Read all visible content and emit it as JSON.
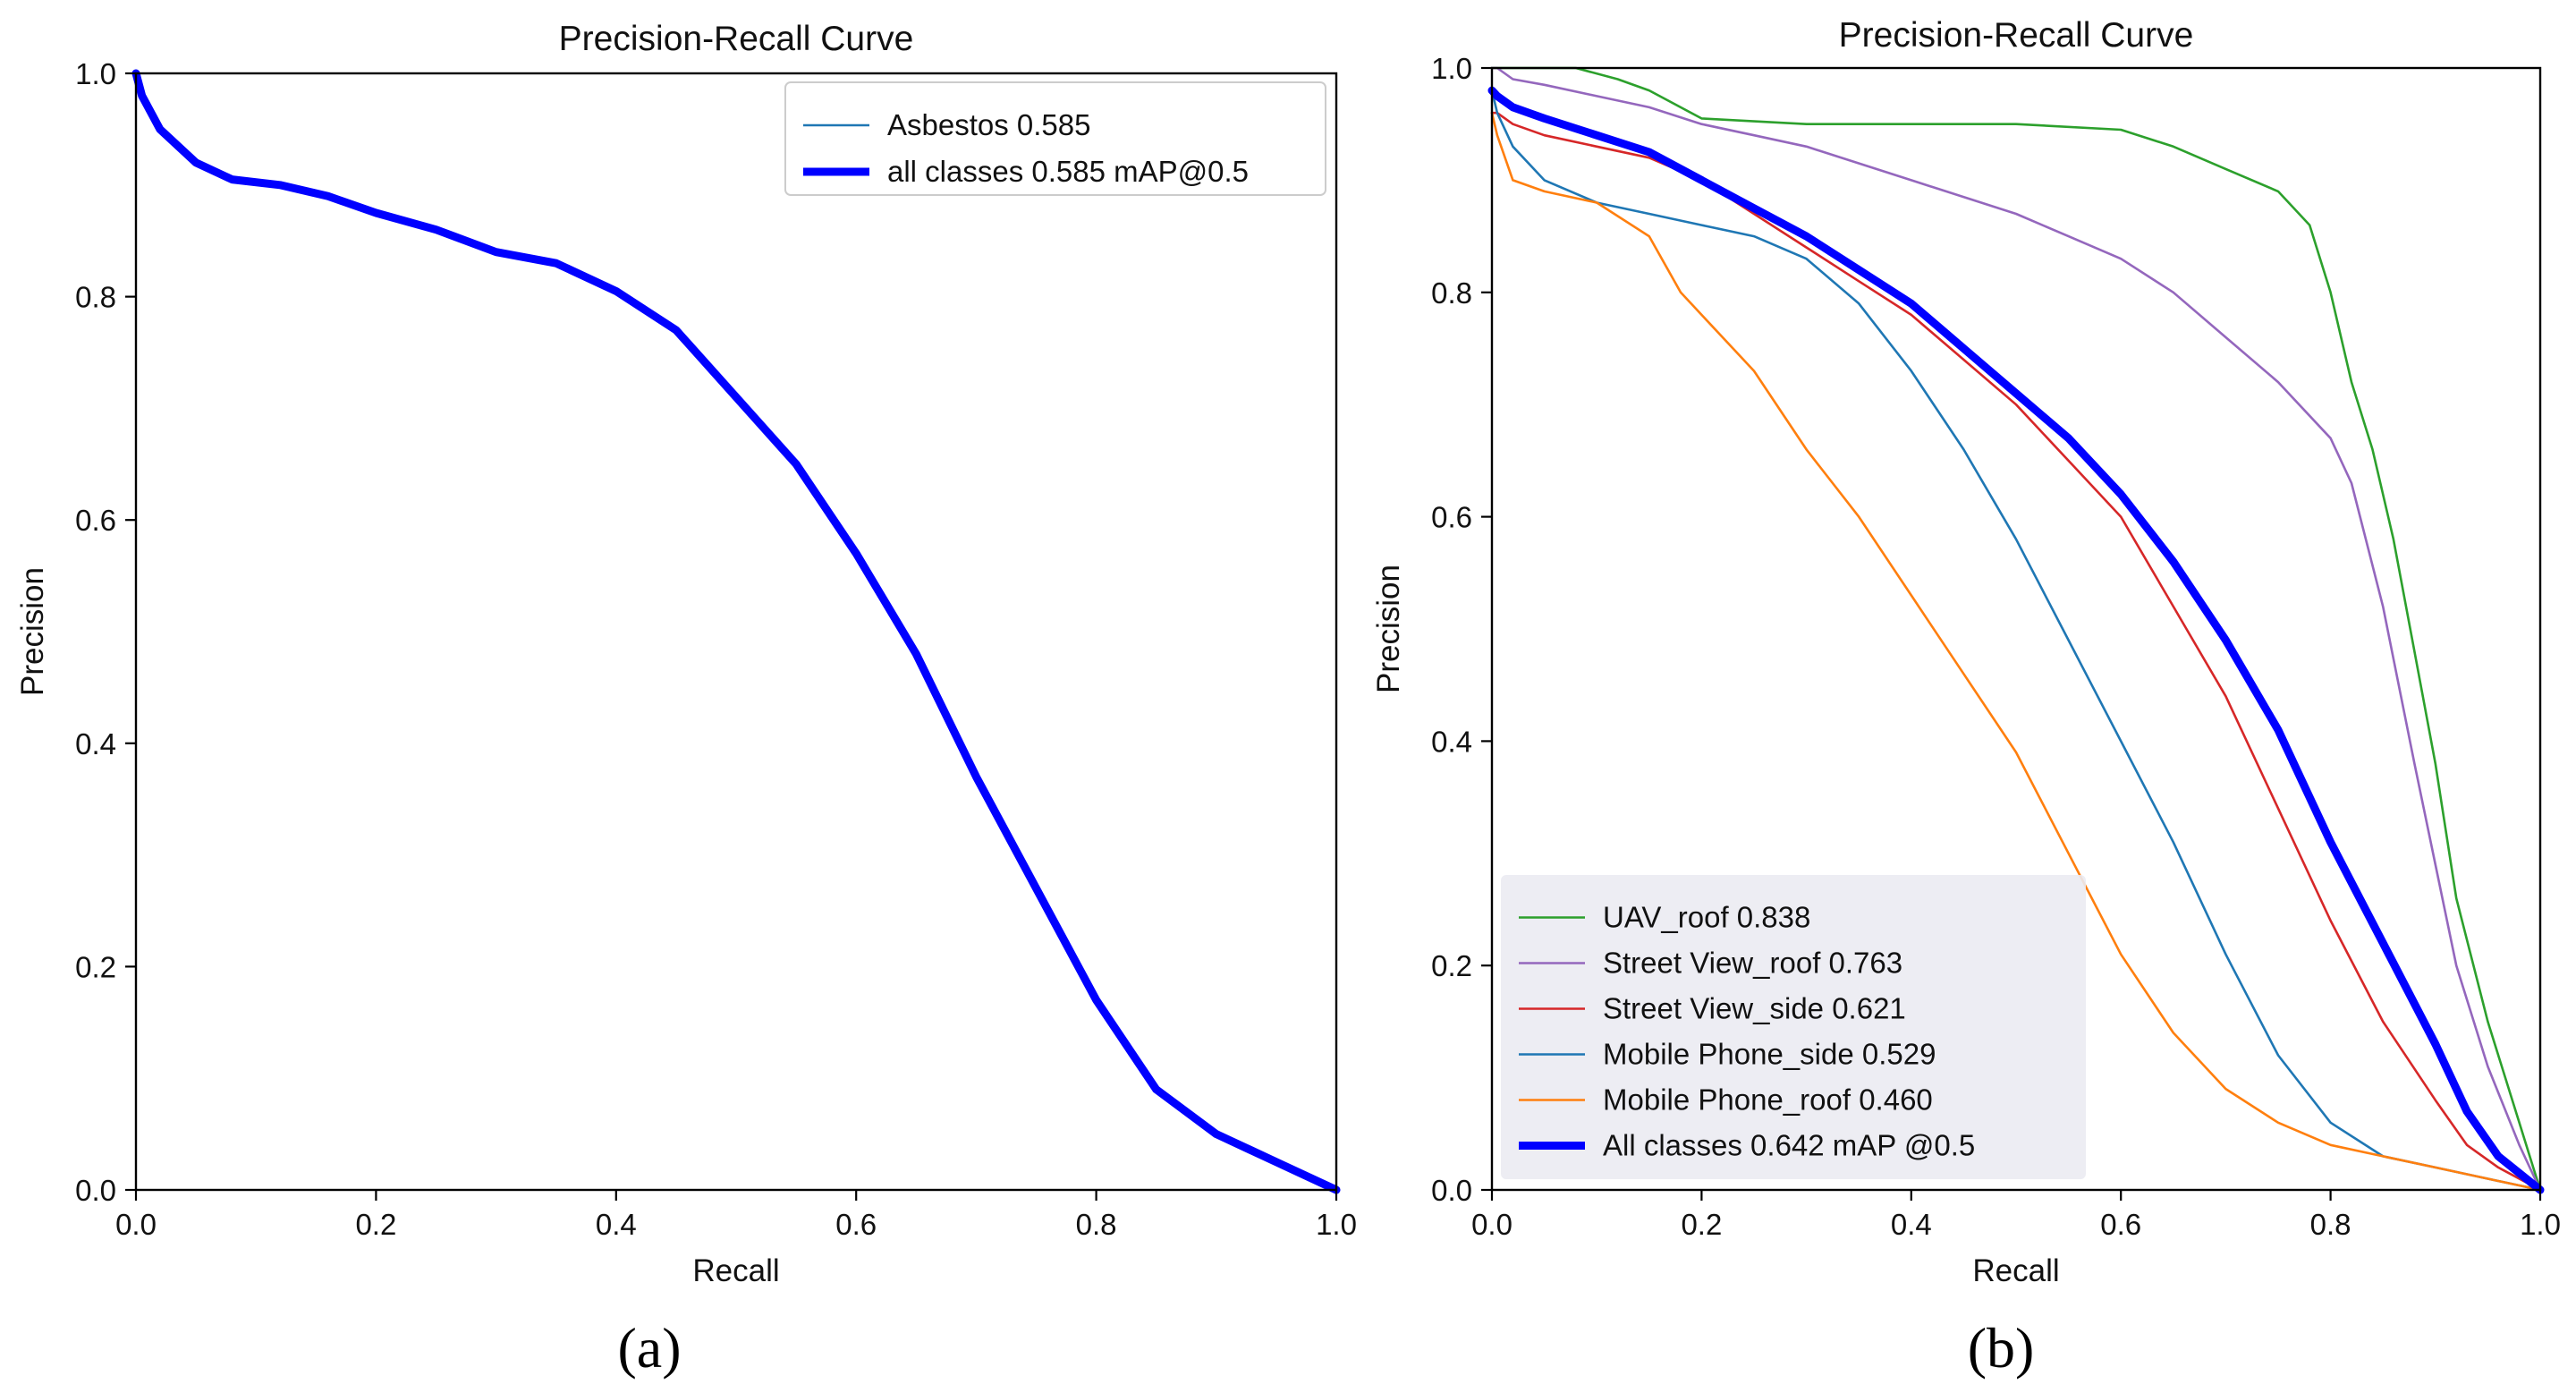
{
  "panels": {
    "a": {
      "caption": "(a)"
    },
    "b": {
      "caption": "(b)"
    }
  },
  "chart_data": [
    {
      "id": "a",
      "type": "line",
      "title": "Precision-Recall Curve",
      "xlabel": "Recall",
      "ylabel": "Precision",
      "xlim": [
        0,
        1
      ],
      "ylim": [
        0,
        1
      ],
      "xticks": [
        "0.0",
        "0.2",
        "0.4",
        "0.6",
        "0.8",
        "1.0"
      ],
      "yticks": [
        "0.0",
        "0.2",
        "0.4",
        "0.6",
        "0.8",
        "1.0"
      ],
      "legend_position": "top-right",
      "series": [
        {
          "name": "Asbestos 0.585",
          "color": "#1f77b4",
          "width": "thin",
          "x": [
            0,
            0.005,
            0.02,
            0.05,
            0.08,
            0.12,
            0.16,
            0.2,
            0.25,
            0.3,
            0.35,
            0.4,
            0.45,
            0.5,
            0.55,
            0.6,
            0.65,
            0.7,
            0.75,
            0.8,
            0.85,
            0.9,
            0.95,
            1.0
          ],
          "y": [
            1.0,
            0.98,
            0.95,
            0.92,
            0.905,
            0.9,
            0.89,
            0.875,
            0.86,
            0.84,
            0.83,
            0.805,
            0.77,
            0.71,
            0.65,
            0.57,
            0.48,
            0.37,
            0.27,
            0.17,
            0.09,
            0.05,
            0.025,
            0.0
          ]
        },
        {
          "name": "all classes 0.585 mAP@0.5",
          "color": "#0000ff",
          "width": "thick",
          "x": [
            0,
            0.005,
            0.02,
            0.05,
            0.08,
            0.12,
            0.16,
            0.2,
            0.25,
            0.3,
            0.35,
            0.4,
            0.45,
            0.5,
            0.55,
            0.6,
            0.65,
            0.7,
            0.75,
            0.8,
            0.85,
            0.9,
            0.95,
            1.0
          ],
          "y": [
            1.0,
            0.98,
            0.95,
            0.92,
            0.905,
            0.9,
            0.89,
            0.875,
            0.86,
            0.84,
            0.83,
            0.805,
            0.77,
            0.71,
            0.65,
            0.57,
            0.48,
            0.37,
            0.27,
            0.17,
            0.09,
            0.05,
            0.025,
            0.0
          ]
        }
      ]
    },
    {
      "id": "b",
      "type": "line",
      "title": "Precision-Recall Curve",
      "xlabel": "Recall",
      "ylabel": "Precision",
      "xlim": [
        0,
        1
      ],
      "ylim": [
        0,
        1
      ],
      "xticks": [
        "0.0",
        "0.2",
        "0.4",
        "0.6",
        "0.8",
        "1.0"
      ],
      "yticks": [
        "0.0",
        "0.2",
        "0.4",
        "0.6",
        "0.8",
        "1.0"
      ],
      "legend_position": "bottom-left",
      "series": [
        {
          "name": "UAV_roof  0.838",
          "color": "#2ca02c",
          "width": "thin",
          "x": [
            0,
            0.005,
            0.02,
            0.05,
            0.08,
            0.12,
            0.15,
            0.2,
            0.3,
            0.4,
            0.5,
            0.6,
            0.65,
            0.7,
            0.75,
            0.78,
            0.8,
            0.82,
            0.84,
            0.86,
            0.88,
            0.9,
            0.92,
            0.95,
            0.98,
            1.0
          ],
          "y": [
            1.0,
            1.0,
            1.0,
            1.0,
            1.0,
            0.99,
            0.98,
            0.955,
            0.95,
            0.95,
            0.95,
            0.945,
            0.93,
            0.91,
            0.89,
            0.86,
            0.8,
            0.72,
            0.66,
            0.58,
            0.48,
            0.38,
            0.26,
            0.15,
            0.06,
            0.0
          ]
        },
        {
          "name": "Street View_roof  0.763",
          "color": "#9467bd",
          "width": "thin",
          "x": [
            0,
            0.005,
            0.02,
            0.05,
            0.1,
            0.15,
            0.2,
            0.25,
            0.3,
            0.4,
            0.5,
            0.55,
            0.6,
            0.65,
            0.7,
            0.75,
            0.8,
            0.82,
            0.85,
            0.88,
            0.9,
            0.92,
            0.95,
            0.98,
            1.0
          ],
          "y": [
            1.0,
            1.0,
            0.99,
            0.985,
            0.975,
            0.965,
            0.95,
            0.94,
            0.93,
            0.9,
            0.87,
            0.85,
            0.83,
            0.8,
            0.76,
            0.72,
            0.67,
            0.63,
            0.52,
            0.38,
            0.29,
            0.2,
            0.11,
            0.04,
            0.0
          ]
        },
        {
          "name": "Street View_side  0.621",
          "color": "#d62728",
          "width": "thin",
          "x": [
            0,
            0.005,
            0.02,
            0.05,
            0.1,
            0.15,
            0.2,
            0.25,
            0.3,
            0.35,
            0.4,
            0.45,
            0.5,
            0.55,
            0.6,
            0.65,
            0.7,
            0.75,
            0.8,
            0.85,
            0.9,
            0.93,
            0.96,
            1.0
          ],
          "y": [
            0.96,
            0.96,
            0.95,
            0.94,
            0.93,
            0.92,
            0.9,
            0.87,
            0.84,
            0.81,
            0.78,
            0.74,
            0.7,
            0.65,
            0.6,
            0.52,
            0.44,
            0.34,
            0.24,
            0.15,
            0.08,
            0.04,
            0.02,
            0.0
          ]
        },
        {
          "name": "Mobile Phone_side  0.529",
          "color": "#1f77b4",
          "width": "thin",
          "x": [
            0,
            0.005,
            0.02,
            0.05,
            0.1,
            0.15,
            0.2,
            0.25,
            0.3,
            0.35,
            0.4,
            0.45,
            0.5,
            0.55,
            0.6,
            0.65,
            0.7,
            0.75,
            0.8,
            0.85,
            0.9,
            0.95,
            1.0
          ],
          "y": [
            0.98,
            0.96,
            0.93,
            0.9,
            0.88,
            0.87,
            0.86,
            0.85,
            0.83,
            0.79,
            0.73,
            0.66,
            0.58,
            0.49,
            0.4,
            0.31,
            0.21,
            0.12,
            0.06,
            0.03,
            0.02,
            0.01,
            0.0
          ]
        },
        {
          "name": "Mobile Phone_roof  0.460",
          "color": "#ff7f0e",
          "width": "thin",
          "x": [
            0,
            0.005,
            0.02,
            0.05,
            0.1,
            0.15,
            0.18,
            0.2,
            0.25,
            0.3,
            0.35,
            0.4,
            0.45,
            0.5,
            0.55,
            0.6,
            0.65,
            0.7,
            0.75,
            0.8,
            0.85,
            0.9,
            0.95,
            1.0
          ],
          "y": [
            0.96,
            0.94,
            0.9,
            0.89,
            0.88,
            0.85,
            0.8,
            0.78,
            0.73,
            0.66,
            0.6,
            0.53,
            0.46,
            0.39,
            0.3,
            0.21,
            0.14,
            0.09,
            0.06,
            0.04,
            0.03,
            0.02,
            0.01,
            0.0
          ]
        },
        {
          "name": "All classes 0.642 mAP @0.5",
          "color": "#0000ff",
          "width": "thick",
          "x": [
            0,
            0.005,
            0.02,
            0.05,
            0.1,
            0.15,
            0.2,
            0.25,
            0.3,
            0.35,
            0.4,
            0.45,
            0.5,
            0.55,
            0.6,
            0.65,
            0.7,
            0.75,
            0.8,
            0.85,
            0.9,
            0.93,
            0.96,
            1.0
          ],
          "y": [
            0.98,
            0.975,
            0.965,
            0.955,
            0.94,
            0.925,
            0.9,
            0.875,
            0.85,
            0.82,
            0.79,
            0.75,
            0.71,
            0.67,
            0.62,
            0.56,
            0.49,
            0.41,
            0.31,
            0.22,
            0.13,
            0.07,
            0.03,
            0.0
          ]
        }
      ]
    }
  ]
}
